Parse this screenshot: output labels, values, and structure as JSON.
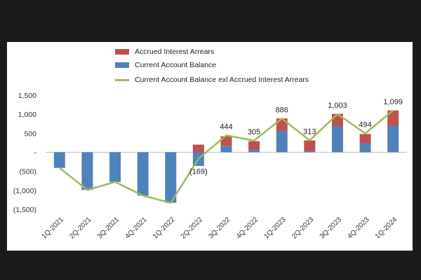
{
  "chart_data": {
    "type": "bar",
    "title": "",
    "xlabel": "",
    "ylabel": "",
    "ylim": [
      -1500,
      1500
    ],
    "y_ticks": [
      {
        "value": 1500,
        "label": "1,500"
      },
      {
        "value": 1000,
        "label": "1,000"
      },
      {
        "value": 500,
        "label": "500"
      },
      {
        "value": 0,
        "label": "-"
      },
      {
        "value": -500,
        "label": "(500)"
      },
      {
        "value": -1000,
        "label": "(1,000)"
      },
      {
        "value": -1500,
        "label": "(1,500)"
      }
    ],
    "categories": [
      "1Q-2021",
      "2Q-2021",
      "3Q-2021",
      "4Q-2021",
      "1Q-2022",
      "2Q-2022",
      "3Q-2022",
      "4Q-2022",
      "1Q-2023",
      "2Q-2023",
      "3Q-2023",
      "4Q-2023",
      "1Q-2024"
    ],
    "stacked": true,
    "series": [
      {
        "name": "Accrued Interest Arrears",
        "type": "bar",
        "color": "#c0504d",
        "values": [
          0,
          0,
          0,
          0,
          0,
          200,
          250,
          230,
          330,
          280,
          330,
          240,
          400
        ]
      },
      {
        "name": "Current Account Balance",
        "type": "bar",
        "color": "#4f81bd",
        "values": [
          -410,
          -990,
          -780,
          -1140,
          -1330,
          -360,
          170,
          60,
          560,
          30,
          680,
          240,
          700
        ]
      },
      {
        "name": "Current Account Balance exl Accrued Interest Arrears",
        "type": "line",
        "color": "#9bbb59",
        "values": [
          -410,
          -990,
          -780,
          -1140,
          -1330,
          -169,
          444,
          305,
          886,
          313,
          1003,
          494,
          1099
        ]
      }
    ],
    "data_labels": [
      {
        "index": 5,
        "text": "(169)"
      },
      {
        "index": 6,
        "text": "444"
      },
      {
        "index": 7,
        "text": "305"
      },
      {
        "index": 8,
        "text": "886"
      },
      {
        "index": 9,
        "text": "313"
      },
      {
        "index": 10,
        "text": "1,003"
      },
      {
        "index": 11,
        "text": "494"
      },
      {
        "index": 12,
        "text": "1,099"
      }
    ],
    "legend": [
      {
        "label": "Accrued Interest Arrears",
        "color": "#c0504d",
        "shape": "box"
      },
      {
        "label": "Current Account Balance",
        "color": "#4f81bd",
        "shape": "box"
      },
      {
        "label": "Current Account Balance exl Accrued Interest Arrears",
        "color": "#9bbb59",
        "shape": "line"
      }
    ],
    "legend_position": "top-center",
    "grid": false
  }
}
